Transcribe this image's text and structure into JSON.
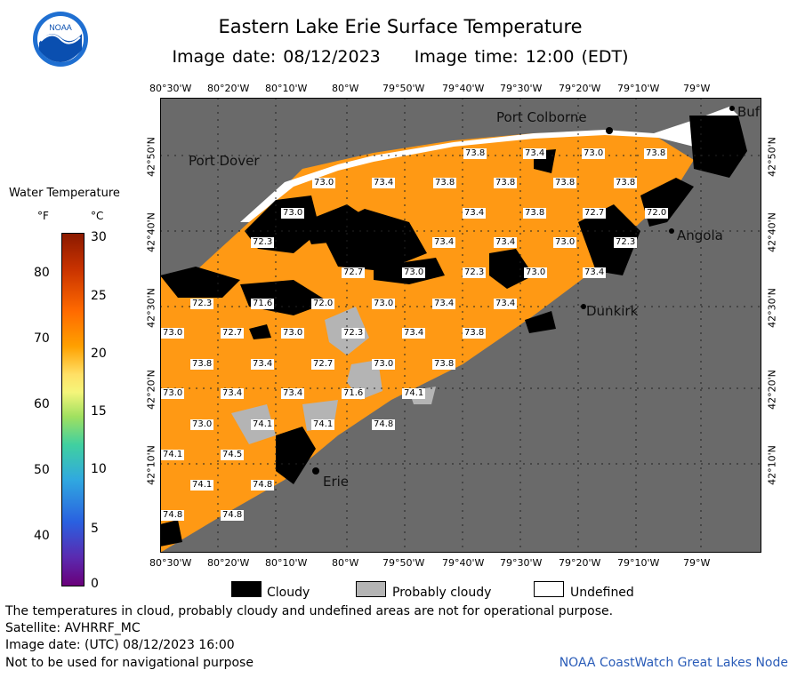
{
  "title": "Eastern Lake Erie Surface Temperature",
  "image_date_label": "Image date: 08/12/2023",
  "image_time_label": "Image time: 12:00 (EDT)",
  "logo_text": "NOAA",
  "longitudes_top": [
    "80°30'W",
    "80°20'W",
    "80°10'W",
    "80°W",
    "79°50'W",
    "79°40'W",
    "79°30'W",
    "79°20'W",
    "79°10'W",
    "79°W"
  ],
  "longitudes_bottom": [
    "80°30'W",
    "80°20'W",
    "80°10'W",
    "80°W",
    "79°50'W",
    "79°40'W",
    "79°30'W",
    "79°20'W",
    "79°10'W",
    "79°W"
  ],
  "latitudes": [
    "42°50'N",
    "42°40'N",
    "42°30'N",
    "42°20'N",
    "42°10'N"
  ],
  "colorbar": {
    "title": "Water Temperature",
    "unit_f": "°F",
    "unit_c": "°C",
    "f_ticks": [
      "80",
      "70",
      "60",
      "50",
      "40"
    ],
    "c_ticks": [
      "30",
      "25",
      "20",
      "15",
      "10",
      "5",
      "0"
    ]
  },
  "cities": [
    "Port Colborne",
    "Port Dover",
    "Angola",
    "Dunkirk",
    "Erie",
    "Buf"
  ],
  "temperatures": [
    "73.8",
    "73.4",
    "73.0",
    "73.8",
    "73.0",
    "73.4",
    "73.8",
    "73.8",
    "73.8",
    "73.8",
    "73.0",
    "73.4",
    "73.8",
    "72.7",
    "72.0",
    "72.3",
    "73.4",
    "73.4",
    "73.0",
    "72.3",
    "72.7",
    "73.0",
    "72.3",
    "73.0",
    "73.4",
    "72.3",
    "71.6",
    "72.0",
    "73.0",
    "73.4",
    "73.4",
    "73.0",
    "72.7",
    "73.0",
    "72.3",
    "73.4",
    "73.8",
    "73.8",
    "73.4",
    "72.7",
    "73.0",
    "73.8",
    "73.0",
    "73.4",
    "73.4",
    "71.6",
    "74.1",
    "73.0",
    "74.1",
    "74.1",
    "74.8",
    "74.1",
    "74.5",
    "74.1",
    "74.8",
    "74.8",
    "74.8"
  ],
  "legend": {
    "cloudy": "Cloudy",
    "probably_cloudy": "Probably cloudy",
    "undefined": "Undefined"
  },
  "footer": {
    "note": "The temperatures in cloud, probably cloudy and undefined areas are not for operational purpose.",
    "satellite": "Satellite: AVHRRF_MC",
    "utc_date": "Image date: (UTC) 08/12/2023  16:00",
    "nav_warning": "Not to be used for navigational purpose",
    "credit": "NOAA CoastWatch Great Lakes Node"
  },
  "colors": {
    "land": "#6a6a6a",
    "water": "#ff9914",
    "cloud": "#000000",
    "probably_cloudy": "#b4b4b4",
    "undefined": "#ffffff",
    "credit": "#2a5cb8"
  }
}
